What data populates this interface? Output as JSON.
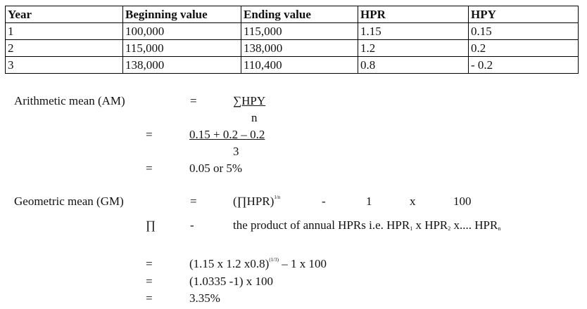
{
  "table": {
    "headers": [
      "Year",
      "Beginning value",
      "Ending value",
      "HPR",
      "HPY"
    ],
    "rows": [
      [
        "1",
        "100,000",
        "115,000",
        "1.15",
        "0.15"
      ],
      [
        "2",
        "115,000",
        "138,000",
        "1.2",
        "0.2"
      ],
      [
        "3",
        "138,000",
        "110,400",
        "0.8",
        "- 0.2"
      ]
    ]
  },
  "am": {
    "label": "Arithmetic mean (AM)",
    "eq": "=",
    "numerator": "∑HPY",
    "denominator": "n",
    "step2_eq": "=",
    "step2_numerator": "0.15 + 0.2 – 0.2",
    "step2_denominator": "3",
    "step3_eq": "=",
    "step3_result": "0.05 or 5%"
  },
  "gm": {
    "label": "Geometric mean (GM)",
    "eq": "=",
    "formula_base": "(∏HPR)",
    "formula_exp": "1/n",
    "formula_minus": "-",
    "formula_one": "1",
    "formula_times": "x",
    "formula_hundred": "100",
    "prod_symbol": "∏",
    "prod_dash": "-",
    "prod_text": "the product of annual HPRs i.e. HPR",
    "prod_sub1": "1",
    "prod_x1": " x HPR",
    "prod_sub2": "2",
    "prod_x2": " x.... HPR",
    "prod_subn": "n",
    "step1_eq": "=",
    "step1_base": "(1.15 x 1.2 x0.8)",
    "step1_exp": "(1/3)",
    "step1_rest": " – 1 x 100",
    "step2_eq": "=",
    "step2_text": "(1.0335 -1) x 100",
    "step3_eq": "=",
    "step3_text": "3.35%"
  }
}
